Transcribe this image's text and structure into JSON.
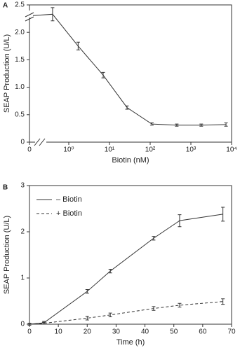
{
  "chart_data": [
    {
      "type": "line",
      "panel": "A",
      "xscale": "log",
      "x_label": "Biotin (nM)",
      "y_label": "SEAP Production (U/L)",
      "x": [
        0,
        0.4,
        1.7,
        7,
        27,
        110,
        450,
        1800,
        7300
      ],
      "series": [
        {
          "color": "#333333",
          "dashed": false,
          "values": [
            2.3,
            2.33,
            1.75,
            1.22,
            0.63,
            0.33,
            0.31,
            0.31,
            0.32
          ],
          "errors": [
            0,
            0.12,
            0.07,
            0.05,
            0.03,
            0.02,
            0.02,
            0.02,
            0.03
          ]
        }
      ],
      "xlim": [
        0,
        10000
      ],
      "xticks": [
        0,
        {
          "value": 1,
          "label": "10⁰"
        },
        {
          "value": 10,
          "label": "10¹"
        },
        {
          "value": 100,
          "label": "10²"
        },
        {
          "value": 1000,
          "label": "10³"
        },
        {
          "value": 10000,
          "label": "10⁴"
        }
      ],
      "ylim": [
        0,
        2.5
      ],
      "yticks": [
        0,
        0.5,
        {
          "value": 1,
          "label": "1.0"
        },
        1.5,
        {
          "value": 2,
          "label": "2.0"
        },
        2.5
      ]
    },
    {
      "type": "line",
      "panel": "B",
      "x_label": "Time (h)",
      "y_label": "SEAP Production (U/L)",
      "x": [
        0,
        5,
        20,
        28,
        43,
        52,
        67
      ],
      "series": [
        {
          "name": "– Biotin",
          "color": "#333333",
          "dashed": false,
          "values": [
            0,
            0.03,
            0.71,
            1.15,
            1.86,
            2.24,
            2.38
          ],
          "errors": [
            0.02,
            0.03,
            0.04,
            0.04,
            0.04,
            0.13,
            0.15
          ]
        },
        {
          "name": "+ Biotin",
          "color": "#333333",
          "dashed": true,
          "values": [
            0,
            0.02,
            0.13,
            0.2,
            0.34,
            0.41,
            0.49
          ],
          "errors": [
            0.02,
            0.02,
            0.04,
            0.04,
            0.04,
            0.04,
            0.06
          ]
        }
      ],
      "legend": "upper left",
      "xlim": [
        0,
        70
      ],
      "xticks": [
        0,
        10,
        20,
        30,
        40,
        50,
        60,
        70
      ],
      "ylim": [
        0,
        3
      ],
      "yticks": [
        0,
        1,
        2,
        3
      ]
    }
  ]
}
